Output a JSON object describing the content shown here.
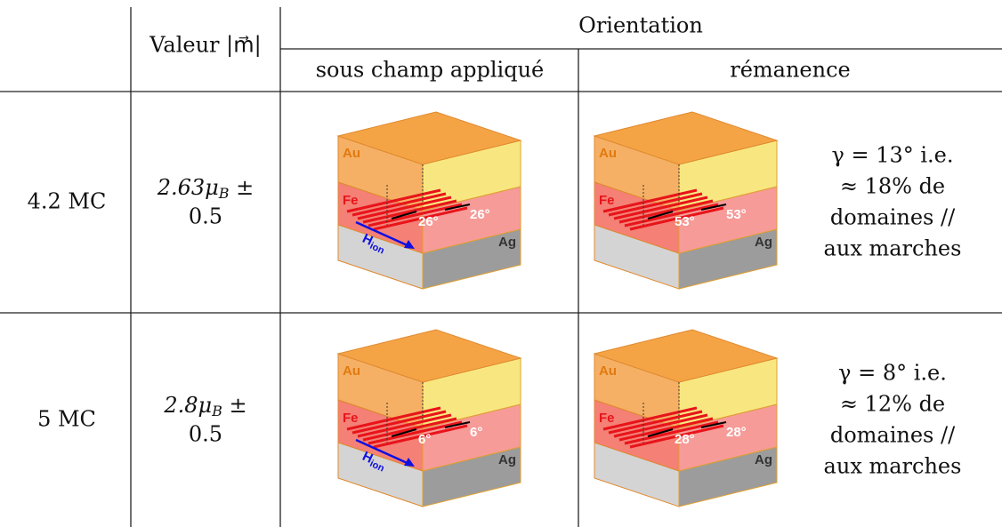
{
  "header": {
    "value_col": "Valeur |m⃗|",
    "orientation": "Orientation",
    "applied": "sous champ appliqué",
    "remanence": "rémanence"
  },
  "rows": [
    {
      "thickness": "4.2 MC",
      "moment": {
        "prefix": "2.63μ",
        "sub": "B",
        "suffix": " ±",
        "error": "0.5"
      },
      "applied": {
        "layers": [
          "Au",
          "Fe",
          "Ag"
        ],
        "field": {
          "main": "H",
          "sub": "ion"
        },
        "angles": [
          "26°",
          "26°"
        ]
      },
      "remanence": {
        "layers": [
          "Au",
          "Fe",
          "Ag"
        ],
        "angles": [
          "53°",
          "53°"
        ]
      },
      "note": [
        "γ = 13° i.e.",
        "≈ 18% de",
        "domaines //",
        "aux marches"
      ]
    },
    {
      "thickness": "5 MC",
      "moment": {
        "prefix": "2.8μ",
        "sub": "B",
        "suffix": " ±",
        "error": "0.5"
      },
      "applied": {
        "layers": [
          "Au",
          "Fe",
          "Ag"
        ],
        "field": {
          "main": "H",
          "sub": "ion"
        },
        "angles": [
          "6°",
          "6°"
        ]
      },
      "remanence": {
        "layers": [
          "Au",
          "Fe",
          "Ag"
        ],
        "angles": [
          "28°",
          "28°"
        ]
      },
      "note": [
        "γ = 8° i.e.",
        "≈ 12% de",
        "domaines //",
        "aux marches"
      ]
    }
  ]
}
